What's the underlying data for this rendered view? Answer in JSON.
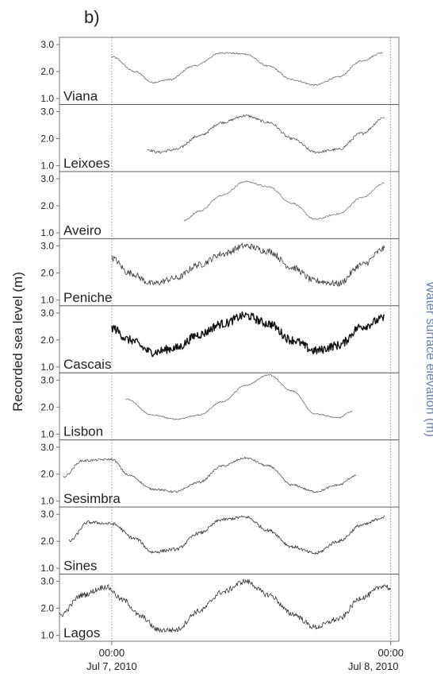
{
  "panel_label": "b)",
  "y_axis_label": "Recorded sea level (m)",
  "y_axis_label_right": "Water surface elevation (m)",
  "chart_data": {
    "type": "line",
    "x_unit": "hours from Jul 6, 2010 19:30",
    "xlim": [
      0,
      29.2
    ],
    "x_ticks": [
      {
        "x": 4.5,
        "time": "00:00",
        "date": "Jul 7, 2010"
      },
      {
        "x": 28.5,
        "time": "00:00",
        "date": "Jul 8, 2010"
      }
    ],
    "ylim": [
      0.9,
      3.15
    ],
    "y_ticks": [
      1.0,
      2.0,
      3.0
    ],
    "y_tick_labels": [
      "1.0",
      "2.0",
      "3.0"
    ],
    "grid": false,
    "panels": [
      {
        "station": "Viana",
        "color": "#6e6e6e",
        "noise": 0.03,
        "x": [
          4.5,
          6.5,
          8.0,
          9.5,
          11.5,
          14.0,
          16.0,
          18.0,
          20.0,
          22.0,
          24.0,
          26.0,
          27.8
        ],
        "y": [
          2.55,
          2.0,
          1.6,
          1.7,
          2.2,
          2.7,
          2.65,
          2.2,
          1.7,
          1.5,
          1.8,
          2.4,
          2.7
        ]
      },
      {
        "station": "Leixoes",
        "color": "#555555",
        "noise": 0.05,
        "x": [
          7.5,
          8.5,
          10.0,
          12.0,
          14.0,
          16.0,
          18.0,
          20.0,
          22.0,
          24.0,
          26.0,
          28.0
        ],
        "y": [
          1.6,
          1.5,
          1.6,
          2.1,
          2.6,
          2.85,
          2.6,
          2.0,
          1.5,
          1.6,
          2.2,
          2.8
        ]
      },
      {
        "station": "Aveiro",
        "color": "#7a7a7a",
        "noise": 0.03,
        "x": [
          10.7,
          12.0,
          14.0,
          16.0,
          18.0,
          20.0,
          22.0,
          24.0,
          26.0,
          28.0
        ],
        "y": [
          1.45,
          1.8,
          2.4,
          2.9,
          2.7,
          2.1,
          1.5,
          1.7,
          2.3,
          2.85
        ]
      },
      {
        "station": "Peniche",
        "color": "#3a3a3a",
        "noise": 0.12,
        "x": [
          4.5,
          6.0,
          8.0,
          10.0,
          12.0,
          14.0,
          16.0,
          18.0,
          20.0,
          22.0,
          24.0,
          26.0,
          28.0
        ],
        "y": [
          2.55,
          2.0,
          1.6,
          1.8,
          2.3,
          2.7,
          3.0,
          2.8,
          2.2,
          1.7,
          1.6,
          2.3,
          2.9
        ]
      },
      {
        "station": "Cascais",
        "color": "#111111",
        "noise": 0.16,
        "x": [
          4.5,
          6.0,
          8.0,
          10.0,
          12.0,
          14.0,
          16.0,
          18.0,
          20.0,
          22.0,
          24.0,
          26.0,
          28.0
        ],
        "y": [
          2.45,
          2.0,
          1.55,
          1.7,
          2.2,
          2.6,
          2.9,
          2.6,
          2.0,
          1.6,
          1.8,
          2.5,
          2.8
        ]
      },
      {
        "station": "Lisbon",
        "color": "#6a6a6a",
        "noise": 0.02,
        "x": [
          5.7,
          8.0,
          10.0,
          12.0,
          14.0,
          16.0,
          18.0,
          20.0,
          22.0,
          24.0,
          25.2
        ],
        "y": [
          2.3,
          1.7,
          1.55,
          1.7,
          2.2,
          2.8,
          3.2,
          2.6,
          1.75,
          1.6,
          1.85
        ]
      },
      {
        "station": "Sesimbra",
        "color": "#555555",
        "noise": 0.04,
        "x": [
          0.3,
          2.0,
          4.5,
          6.0,
          8.0,
          10.0,
          12.0,
          14.0,
          16.0,
          18.0,
          20.0,
          22.0,
          24.0,
          25.5
        ],
        "y": [
          1.9,
          2.5,
          2.55,
          1.95,
          1.45,
          1.35,
          1.7,
          2.3,
          2.6,
          2.3,
          1.6,
          1.35,
          1.6,
          1.95
        ]
      },
      {
        "station": "Sines",
        "color": "#333333",
        "noise": 0.06,
        "x": [
          0.8,
          2.5,
          4.5,
          6.5,
          8.0,
          10.0,
          12.0,
          14.0,
          16.0,
          18.0,
          20.0,
          22.0,
          24.0,
          26.0,
          28.0
        ],
        "y": [
          2.0,
          2.7,
          2.65,
          2.1,
          1.6,
          1.7,
          2.3,
          2.8,
          2.9,
          2.4,
          1.8,
          1.55,
          2.0,
          2.6,
          2.9
        ]
      },
      {
        "station": "Lagos",
        "color": "#333333",
        "noise": 0.1,
        "x": [
          0.0,
          2.0,
          4.0,
          5.5,
          7.0,
          8.5,
          10.0,
          12.0,
          14.0,
          16.0,
          18.0,
          20.0,
          22.0,
          24.0,
          26.0,
          28.0,
          28.5
        ],
        "y": [
          1.75,
          2.5,
          2.8,
          2.3,
          1.7,
          1.2,
          1.2,
          1.9,
          2.6,
          3.0,
          2.5,
          1.8,
          1.3,
          1.6,
          2.4,
          2.85,
          2.7
        ]
      }
    ]
  }
}
